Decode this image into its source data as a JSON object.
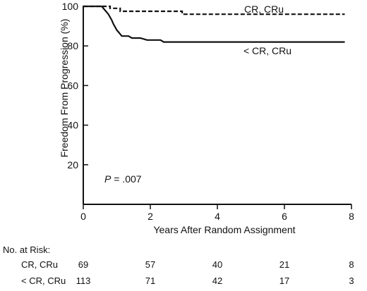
{
  "chart_data": {
    "type": "line",
    "xlabel": "Years After Random Assignment",
    "ylabel": "Freedom From Progression (%)",
    "xlim": [
      0,
      8
    ],
    "ylim": [
      0,
      100
    ],
    "xticks": [
      0,
      2,
      4,
      6,
      8
    ],
    "yticks": [
      20,
      40,
      60,
      80,
      100
    ],
    "grid": false,
    "legend": "none",
    "annotation_prefix": "P",
    "annotation_value": " = .007",
    "series": [
      {
        "name": "CR, CRu",
        "style": "dashed",
        "x": [
          0,
          0.8,
          0.8,
          1.1,
          1.1,
          2.95,
          2.95,
          7.8
        ],
        "y": [
          100,
          100,
          99,
          99,
          97.5,
          97.5,
          96,
          96
        ]
      },
      {
        "name": "< CR, CRu",
        "style": "solid",
        "x": [
          0,
          0.55,
          0.65,
          0.75,
          0.85,
          0.9,
          1.0,
          1.05,
          1.15,
          1.35,
          1.45,
          1.7,
          1.9,
          2.1,
          2.3,
          2.4,
          7.8
        ],
        "y": [
          100,
          100,
          98,
          96,
          93,
          91,
          88,
          87,
          85,
          85,
          84,
          84,
          83,
          83,
          83,
          82,
          82
        ]
      }
    ]
  },
  "risk_table": {
    "heading": "No. at Risk:",
    "rows": [
      {
        "label": "CR, CRu",
        "values": [
          "69",
          "57",
          "40",
          "21",
          "8"
        ]
      },
      {
        "label": "< CR, CRu",
        "values": [
          "113",
          "71",
          "42",
          "17",
          "3"
        ]
      }
    ]
  }
}
